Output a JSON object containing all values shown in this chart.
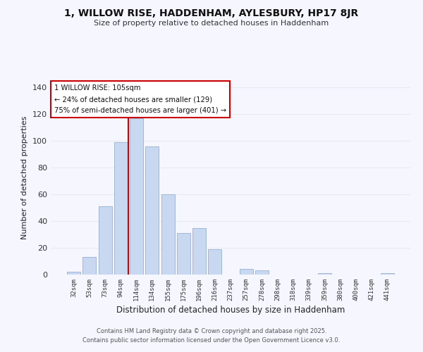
{
  "title_line1": "1, WILLOW RISE, HADDENHAM, AYLESBURY, HP17 8JR",
  "title_line2": "Size of property relative to detached houses in Haddenham",
  "xlabel": "Distribution of detached houses by size in Haddenham",
  "ylabel": "Number of detached properties",
  "bin_labels": [
    "32sqm",
    "53sqm",
    "73sqm",
    "94sqm",
    "114sqm",
    "134sqm",
    "155sqm",
    "175sqm",
    "196sqm",
    "216sqm",
    "237sqm",
    "257sqm",
    "278sqm",
    "298sqm",
    "318sqm",
    "339sqm",
    "359sqm",
    "380sqm",
    "400sqm",
    "421sqm",
    "441sqm"
  ],
  "bar_values": [
    2,
    13,
    51,
    99,
    117,
    96,
    60,
    31,
    35,
    19,
    0,
    4,
    3,
    0,
    0,
    0,
    1,
    0,
    0,
    0,
    1
  ],
  "bar_color": "#c8d8f0",
  "bar_edge_color": "#9ab0cc",
  "vline_color": "#cc0000",
  "annotation_title": "1 WILLOW RISE: 105sqm",
  "annotation_line2": "← 24% of detached houses are smaller (129)",
  "annotation_line3": "75% of semi-detached houses are larger (401) →",
  "ylim": [
    0,
    145
  ],
  "yticks": [
    0,
    20,
    40,
    60,
    80,
    100,
    120,
    140
  ],
  "footer_line1": "Contains HM Land Registry data © Crown copyright and database right 2025.",
  "footer_line2": "Contains public sector information licensed under the Open Government Licence v3.0.",
  "background_color": "#f5f6ff",
  "grid_color": "#e8eaf0"
}
